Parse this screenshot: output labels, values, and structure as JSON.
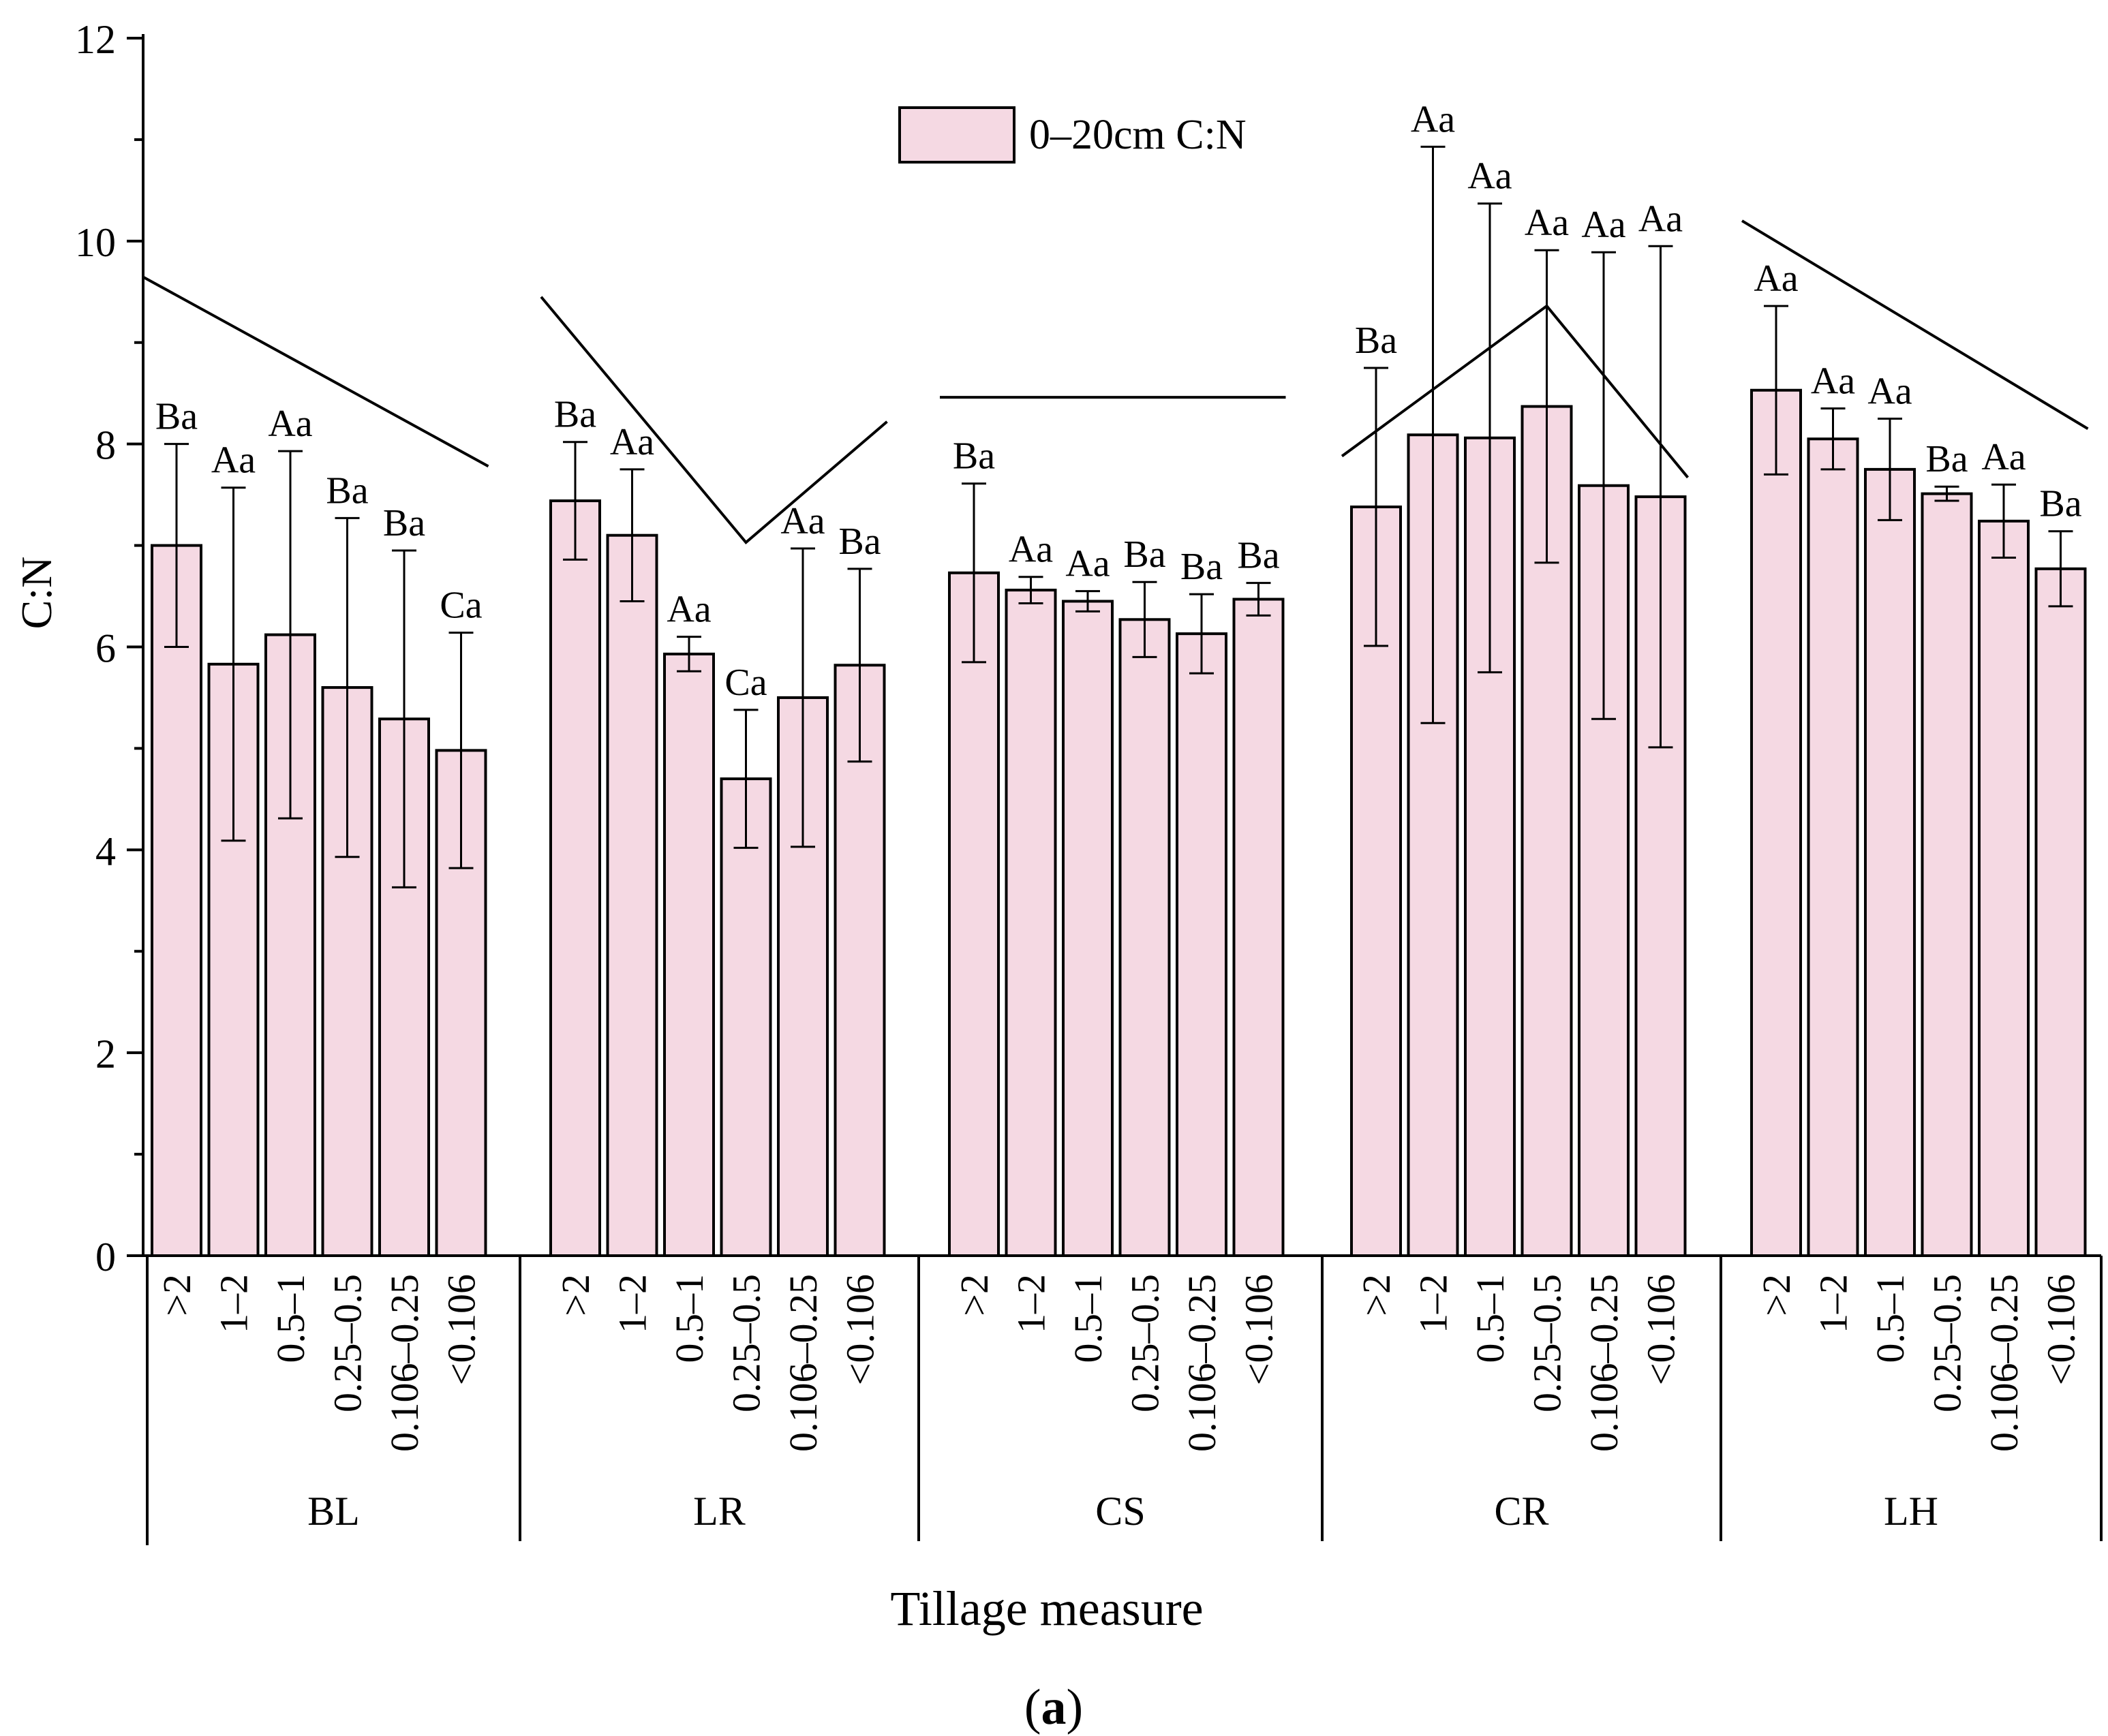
{
  "chart_data": {
    "type": "bar",
    "title": "",
    "xlabel": "Tillage measure",
    "ylabel": "C:N",
    "ylim": [
      0,
      12
    ],
    "yticks": [
      "0",
      "2",
      "4",
      "6",
      "8",
      "10",
      "12"
    ],
    "legend": {
      "label": "0–20cm C:N",
      "position": "top-center"
    },
    "caption": {
      "letter": "a",
      "open": "(",
      "close": ")"
    },
    "colors": {
      "bar_fill": "#f5d9e3",
      "stroke": "#000000"
    },
    "categories": [
      ">2",
      "1–2",
      "0.5–1",
      "0.25–0.5",
      "0.106–0.25",
      "<0.106"
    ],
    "groups": [
      {
        "name": "BL",
        "values": [
          7.0,
          5.83,
          6.12,
          5.6,
          5.29,
          4.98
        ],
        "errors": [
          1.0,
          1.74,
          1.81,
          1.67,
          1.66,
          1.16
        ],
        "letters": [
          "Ba",
          "Aa",
          "Aa",
          "Ba",
          "Ba",
          "Ca"
        ],
        "trend": [
          [
            ">2",
            9.65
          ],
          [
            "<0.106",
            7.78
          ]
        ]
      },
      {
        "name": "LR",
        "values": [
          7.44,
          7.1,
          5.93,
          4.7,
          5.5,
          5.82
        ],
        "errors": [
          0.58,
          0.65,
          0.17,
          0.68,
          1.47,
          0.95
        ],
        "letters": [
          "Ba",
          "Aa",
          "Aa",
          "Ca",
          "Aa",
          "Ba"
        ],
        "trend": [
          [
            ">2",
            9.45
          ],
          [
            "0.25–0.5",
            7.03
          ],
          [
            "<0.106",
            8.22
          ]
        ]
      },
      {
        "name": "CS",
        "values": [
          6.73,
          6.56,
          6.45,
          6.27,
          6.13,
          6.47
        ],
        "errors": [
          0.88,
          0.13,
          0.1,
          0.37,
          0.39,
          0.16
        ],
        "letters": [
          "Ba",
          "Aa",
          "Aa",
          "Ba",
          "Ba",
          "Ba"
        ],
        "trend": [
          [
            ">2",
            8.46
          ],
          [
            "<0.106",
            8.46
          ]
        ]
      },
      {
        "name": "CR",
        "values": [
          7.38,
          8.09,
          8.06,
          8.37,
          7.59,
          7.48
        ],
        "errors": [
          1.37,
          2.84,
          2.31,
          1.54,
          2.3,
          2.47
        ],
        "letters": [
          "Ba",
          "Aa",
          "Aa",
          "Aa",
          "Aa",
          "Aa"
        ],
        "trend": [
          [
            ">2",
            7.88
          ],
          [
            "0.25–0.5",
            9.36
          ],
          [
            "<0.106",
            7.67
          ]
        ]
      },
      {
        "name": "LH",
        "values": [
          8.53,
          8.05,
          7.75,
          7.51,
          7.24,
          6.77
        ],
        "errors": [
          0.83,
          0.3,
          0.5,
          0.07,
          0.36,
          0.37
        ],
        "letters": [
          "Aa",
          "Aa",
          "Aa",
          "Ba",
          "Aa",
          "Ba"
        ],
        "trend": [
          [
            ">2",
            10.2
          ],
          [
            "<0.106",
            8.15
          ]
        ]
      }
    ]
  }
}
